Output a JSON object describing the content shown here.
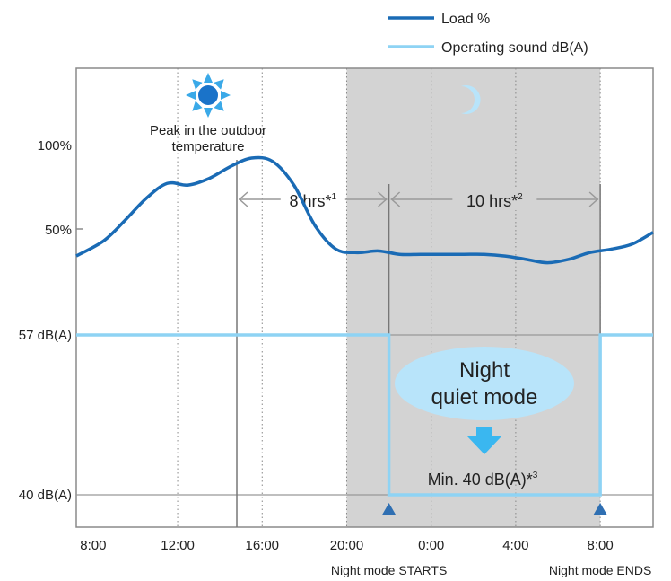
{
  "chart_data": {
    "type": "line",
    "x_unit": "hours elapsed from 8:00",
    "x_tick_labels": [
      "8:00",
      "12:00",
      "16:00",
      "20:00",
      "0:00",
      "4:00",
      "8:00"
    ],
    "x_tick_values": [
      0,
      4,
      8,
      12,
      16,
      20,
      24
    ],
    "xlim": [
      -0.8,
      26.5
    ],
    "y_tick_labels": [
      "100%",
      "50%",
      "57 dB(A)",
      "40 dB(A)"
    ],
    "legend": [
      "Load %",
      "Operating sound dB(A)"
    ],
    "legend_position": "top-right",
    "series": [
      {
        "name": "Load %",
        "color": "#1a6bb5",
        "x": [
          -0.8,
          0.5,
          1.5,
          2.5,
          3.5,
          4.5,
          5.5,
          6.5,
          7.5,
          8.5,
          9.5,
          10.5,
          11.5,
          12.5,
          13.5,
          14.5,
          15.5,
          16.5,
          17.5,
          18.5,
          19.5,
          20.5,
          21.5,
          22.5,
          23.5,
          24.5,
          25.5,
          26.5
        ],
        "y": [
          34,
          43,
          55,
          68,
          77,
          76,
          80,
          87,
          92,
          90,
          76,
          52,
          38,
          36,
          37,
          35,
          35,
          35,
          35,
          35,
          34,
          32,
          30,
          32,
          36,
          38,
          41,
          48
        ]
      },
      {
        "name": "Operating sound dB(A)",
        "color": "#8ed3f4",
        "x": [
          -0.8,
          14,
          14,
          24,
          24,
          26.5
        ],
        "y": [
          57,
          57,
          40,
          40,
          57,
          57
        ]
      }
    ],
    "night_zone": {
      "start": 12,
      "end": 24
    },
    "peak_time": 6.8,
    "peak_label_line1": "Peak in the outdoor",
    "peak_label_line2": "temperature",
    "interval_1": "8 hrs*",
    "interval_1_sup": "1",
    "interval_2": "10 hrs*",
    "interval_2_sup": "2",
    "badge_line1": "Night",
    "badge_line2": "quiet mode",
    "min_note": "Min. 40 dB(A)*",
    "min_note_sup": "3",
    "night_start_label": "Night mode STARTS",
    "night_end_label": "Night mode ENDS",
    "sun_icon": "sun-icon",
    "moon_icon": "moon-icon"
  }
}
